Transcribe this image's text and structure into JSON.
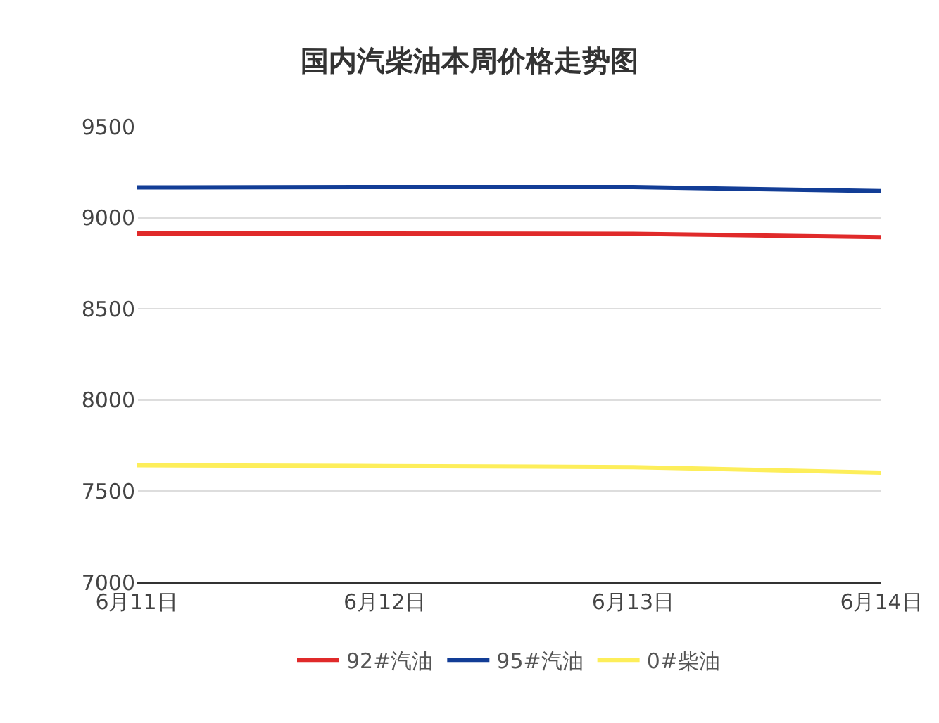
{
  "chart_data": {
    "type": "line",
    "title": "国内汽柴油本周价格走势图",
    "categories": [
      "6月11日",
      "6月12日",
      "6月13日",
      "6月14日"
    ],
    "series": [
      {
        "name": "92#汽油",
        "color": "#e02a2a",
        "values": [
          8914,
          8914,
          8912,
          8893
        ]
      },
      {
        "name": "95#汽油",
        "color": "#123d96",
        "values": [
          9166,
          9168,
          9168,
          9146
        ]
      },
      {
        "name": "0#柴油",
        "color": "#fdee5a",
        "values": [
          7642,
          7638,
          7632,
          7602
        ]
      }
    ],
    "ylim": [
      7000,
      9500
    ],
    "yticks": [
      7000,
      7500,
      8000,
      8500,
      9000,
      9500
    ],
    "grid": "y",
    "legend": "bottom",
    "marker": "none",
    "line_style": "solid"
  }
}
